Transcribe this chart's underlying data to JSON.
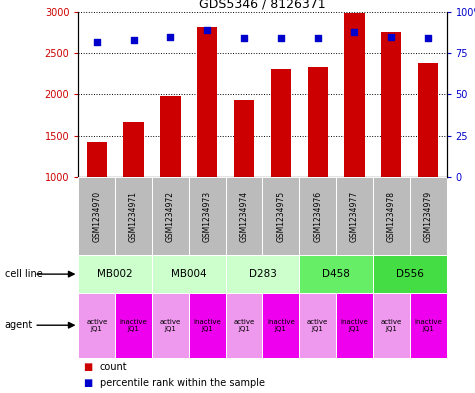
{
  "title": "GDS5346 / 8126371",
  "samples": [
    "GSM1234970",
    "GSM1234971",
    "GSM1234972",
    "GSM1234973",
    "GSM1234974",
    "GSM1234975",
    "GSM1234976",
    "GSM1234977",
    "GSM1234978",
    "GSM1234979"
  ],
  "counts": [
    1420,
    1670,
    1980,
    2820,
    1930,
    2310,
    2330,
    2980,
    2760,
    2380
  ],
  "percentiles": [
    82,
    83,
    85,
    89,
    84,
    84,
    84,
    88,
    85,
    84
  ],
  "cell_lines": [
    {
      "label": "MB002",
      "cols": [
        0,
        1
      ],
      "color": "#ccffcc"
    },
    {
      "label": "MB004",
      "cols": [
        2,
        3
      ],
      "color": "#ccffcc"
    },
    {
      "label": "D283",
      "cols": [
        4,
        5
      ],
      "color": "#ccffcc"
    },
    {
      "label": "D458",
      "cols": [
        6,
        7
      ],
      "color": "#66ee66"
    },
    {
      "label": "D556",
      "cols": [
        8,
        9
      ],
      "color": "#44dd44"
    }
  ],
  "agents": [
    "active\nJQ1",
    "inactive\nJQ1",
    "active\nJQ1",
    "inactive\nJQ1",
    "active\nJQ1",
    "inactive\nJQ1",
    "active\nJQ1",
    "inactive\nJQ1",
    "active\nJQ1",
    "inactive\nJQ1"
  ],
  "agent_colors": [
    "#ee99ee",
    "#ee00ee",
    "#ee99ee",
    "#ee00ee",
    "#ee99ee",
    "#ee00ee",
    "#ee99ee",
    "#ee00ee",
    "#ee99ee",
    "#ee00ee"
  ],
  "bar_color": "#cc0000",
  "dot_color": "#0000cc",
  "ylim_left": [
    1000,
    3000
  ],
  "ylim_right": [
    0,
    100
  ],
  "yticks_left": [
    1000,
    1500,
    2000,
    2500,
    3000
  ],
  "yticks_right": [
    0,
    25,
    50,
    75,
    100
  ],
  "sample_box_color": "#bbbbbb",
  "left_labels": [
    "cell line",
    "agent"
  ]
}
